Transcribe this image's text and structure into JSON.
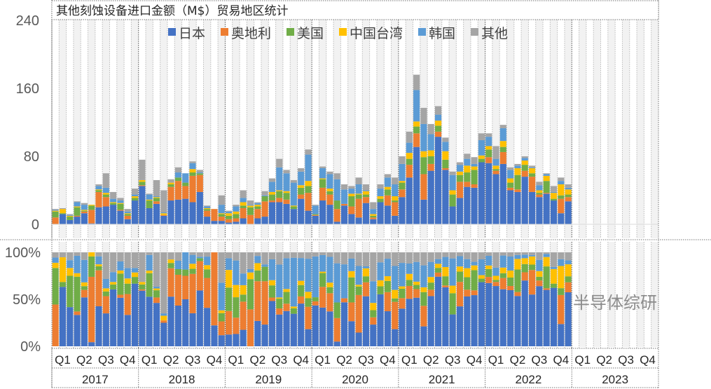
{
  "chart_data": {
    "type": "bar",
    "stacked": true,
    "title": "其他刻蚀设备进口金额（M$）贸易地区统计",
    "top_panel": {
      "ylim": [
        0,
        240
      ],
      "yticks": [
        "0",
        "80",
        "160",
        "240"
      ],
      "ytick_values": [
        0,
        80,
        160,
        240
      ]
    },
    "bottom_panel": {
      "mode": "percent",
      "ylim": [
        0,
        100
      ],
      "yticks": [
        "0%",
        "50%",
        "100%"
      ],
      "ytick_values": [
        0,
        50,
        100
      ]
    },
    "legend_position": "top",
    "years": [
      "2017",
      "2018",
      "2019",
      "2020",
      "2021",
      "2022",
      "2023"
    ],
    "quarters": [
      "Q1",
      "Q2",
      "Q3",
      "Q4"
    ],
    "months_per_year": 12,
    "series": [
      {
        "name": "日本",
        "color": "#4472C4"
      },
      {
        "name": "奥地利",
        "color": "#ED7D31"
      },
      {
        "name": "美国",
        "color": "#70AD47"
      },
      {
        "name": "中国台湾",
        "color": "#FFC000"
      },
      {
        "name": "韩国",
        "color": "#5B9BD5"
      },
      {
        "name": "其他",
        "color": "#A5A5A5"
      }
    ],
    "monthly_values_order": "[日本, 奥地利, 美国, 中国台湾, 韩国, 其他]",
    "monthly_values": [
      [
        0,
        8,
        7,
        1,
        1,
        1
      ],
      [
        12,
        0,
        1,
        5,
        0,
        1
      ],
      [
        5,
        0,
        4,
        1,
        1,
        1
      ],
      [
        9,
        1,
        10,
        1,
        5,
        1
      ],
      [
        13,
        2,
        1,
        1,
        6,
        2
      ],
      [
        1,
        16,
        5,
        1,
        0,
        0
      ],
      [
        20,
        18,
        2,
        1,
        4,
        2
      ],
      [
        21,
        11,
        3,
        2,
        6,
        17
      ],
      [
        23,
        0,
        2,
        1,
        4,
        8
      ],
      [
        16,
        1,
        7,
        1,
        3,
        3
      ],
      [
        6,
        4,
        2,
        1,
        2,
        3
      ],
      [
        28,
        0,
        3,
        2,
        2,
        7
      ],
      [
        45,
        1,
        4,
        2,
        0,
        24
      ],
      [
        19,
        0,
        9,
        1,
        6,
        1
      ],
      [
        24,
        3,
        4,
        1,
        1,
        19
      ],
      [
        10,
        1,
        0,
        2,
        1,
        26
      ],
      [
        28,
        16,
        3,
        2,
        0,
        4
      ],
      [
        29,
        22,
        4,
        0,
        6,
        6
      ],
      [
        30,
        15,
        4,
        0,
        11,
        0
      ],
      [
        26,
        31,
        4,
        4,
        7,
        2
      ],
      [
        38,
        20,
        2,
        0,
        1,
        3
      ],
      [
        9,
        7,
        2,
        1,
        2,
        1
      ],
      [
        4,
        14,
        0,
        0,
        0,
        0
      ],
      [
        4,
        5,
        3,
        1,
        10,
        11
      ],
      [
        2,
        4,
        4,
        3,
        2,
        1
      ],
      [
        3,
        4,
        5,
        3,
        6,
        2
      ],
      [
        7,
        12,
        3,
        4,
        5,
        9
      ],
      [
        0,
        11,
        9,
        2,
        1,
        5
      ],
      [
        7,
        11,
        3,
        2,
        2,
        1
      ],
      [
        9,
        18,
        6,
        0,
        1,
        5
      ],
      [
        26,
        2,
        7,
        3,
        12,
        4
      ],
      [
        26,
        5,
        8,
        1,
        27,
        10
      ],
      [
        24,
        5,
        8,
        2,
        21,
        4
      ],
      [
        18,
        0,
        3,
        1,
        27,
        3
      ],
      [
        30,
        5,
        8,
        3,
        16,
        4
      ],
      [
        16,
        21,
        8,
        6,
        31,
        6
      ],
      [
        10,
        1,
        1,
        0,
        10,
        1
      ],
      [
        28,
        15,
        10,
        1,
        12,
        2
      ],
      [
        23,
        12,
        4,
        3,
        17,
        3
      ],
      [
        3,
        15,
        10,
        0,
        25,
        7
      ],
      [
        22,
        2,
        0,
        0,
        17,
        6
      ],
      [
        12,
        9,
        12,
        3,
        6,
        3
      ],
      [
        8,
        22,
        5,
        1,
        11,
        8
      ],
      [
        25,
        7,
        3,
        4,
        1,
        7
      ],
      [
        6,
        2,
        2,
        2,
        6,
        8
      ],
      [
        26,
        0,
        4,
        3,
        9,
        5
      ],
      [
        22,
        12,
        7,
        3,
        11,
        4
      ],
      [
        10,
        16,
        2,
        5,
        14,
        8
      ],
      [
        32,
        9,
        8,
        2,
        20,
        9
      ],
      [
        55,
        15,
        7,
        7,
        12,
        13
      ],
      [
        91,
        16,
        8,
        6,
        37,
        18
      ],
      [
        29,
        30,
        20,
        7,
        32,
        19
      ],
      [
        63,
        8,
        9,
        7,
        19,
        12
      ],
      [
        103,
        6,
        7,
        6,
        7,
        10
      ],
      [
        64,
        2,
        10,
        10,
        11,
        5
      ],
      [
        21,
        0,
        14,
        5,
        18,
        4
      ],
      [
        31,
        19,
        8,
        4,
        8,
        3
      ],
      [
        44,
        6,
        11,
        8,
        8,
        6
      ],
      [
        43,
        4,
        17,
        4,
        3,
        8
      ],
      [
        73,
        0,
        4,
        4,
        18,
        8
      ],
      [
        72,
        7,
        9,
        4,
        11,
        4
      ],
      [
        59,
        4,
        2,
        4,
        8,
        15
      ],
      [
        71,
        14,
        6,
        7,
        15,
        4
      ],
      [
        40,
        3,
        6,
        5,
        10,
        3
      ],
      [
        38,
        3,
        17,
        8,
        3,
        2
      ],
      [
        56,
        7,
        7,
        5,
        3,
        2
      ],
      [
        38,
        18,
        4,
        6,
        1,
        2
      ],
      [
        32,
        3,
        2,
        3,
        6,
        4
      ],
      [
        36,
        1,
        14,
        6,
        2,
        1
      ],
      [
        28,
        0,
        2,
        7,
        1,
        7
      ],
      [
        13,
        17,
        4,
        13,
        4,
        4
      ],
      [
        27,
        5,
        3,
        6,
        2,
        4
      ]
    ]
  },
  "watermark": "半导体综研"
}
